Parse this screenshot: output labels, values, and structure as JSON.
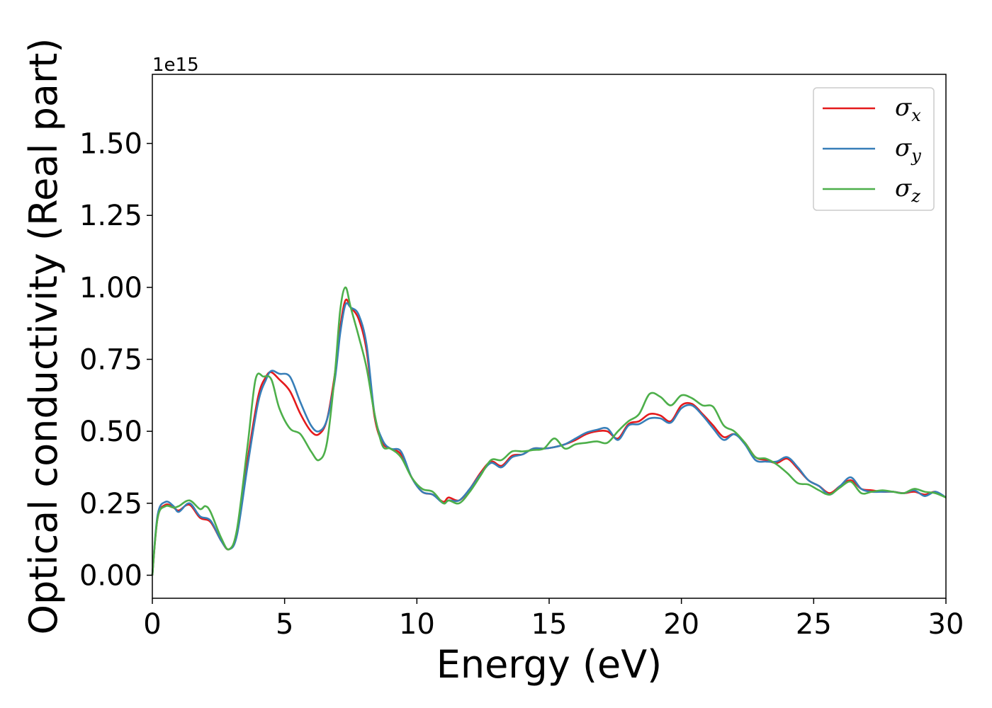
{
  "chart_data": {
    "type": "line",
    "title": "",
    "xlabel": "Energy (eV)",
    "ylabel": "Optical conductivity (Real part)",
    "y_offset_label": "1e15",
    "xlim": [
      0,
      30
    ],
    "ylim": [
      -0.08,
      1.74
    ],
    "x_ticks": [
      0,
      5,
      10,
      15,
      20,
      25,
      30
    ],
    "x_tick_labels": [
      "0",
      "5",
      "10",
      "15",
      "20",
      "25",
      "30"
    ],
    "y_ticks": [
      0.0,
      0.25,
      0.5,
      0.75,
      1.0,
      1.25,
      1.5
    ],
    "y_tick_labels": [
      "0.00",
      "0.25",
      "0.50",
      "0.75",
      "1.00",
      "1.25",
      "1.50"
    ],
    "grid": false,
    "legend_position": "top-right",
    "series": [
      {
        "name": "σx",
        "symbol": "σ",
        "subscript": "x",
        "color": "#e41a1c",
        "x": [
          0,
          0.2,
          0.5,
          0.8,
          1.0,
          1.4,
          1.8,
          2.2,
          2.6,
          2.9,
          3.2,
          3.6,
          4.0,
          4.3,
          4.5,
          4.8,
          5.2,
          5.6,
          6.0,
          6.3,
          6.6,
          6.9,
          7.1,
          7.3,
          7.5,
          7.8,
          8.1,
          8.4,
          8.7,
          9.0,
          9.4,
          9.8,
          10.2,
          10.6,
          11.0,
          11.2,
          11.6,
          12.0,
          12.4,
          12.8,
          13.2,
          13.6,
          14.0,
          14.4,
          14.8,
          15.2,
          15.6,
          16.0,
          16.4,
          16.8,
          17.2,
          17.6,
          18.0,
          18.4,
          18.8,
          19.2,
          19.6,
          20.0,
          20.4,
          20.8,
          21.2,
          21.6,
          22.0,
          22.4,
          22.8,
          23.2,
          23.6,
          24.0,
          24.4,
          24.8,
          25.2,
          25.6,
          26.0,
          26.4,
          26.8,
          27.2,
          27.6,
          28.0,
          28.4,
          28.8,
          29.2,
          29.6,
          30.0
        ],
        "y": [
          0.0,
          0.2,
          0.245,
          0.235,
          0.225,
          0.245,
          0.2,
          0.185,
          0.12,
          0.09,
          0.15,
          0.4,
          0.62,
          0.69,
          0.705,
          0.68,
          0.64,
          0.56,
          0.5,
          0.49,
          0.54,
          0.7,
          0.86,
          0.955,
          0.93,
          0.89,
          0.78,
          0.55,
          0.46,
          0.44,
          0.42,
          0.34,
          0.29,
          0.28,
          0.255,
          0.27,
          0.26,
          0.3,
          0.355,
          0.395,
          0.38,
          0.415,
          0.42,
          0.44,
          0.44,
          0.445,
          0.455,
          0.47,
          0.49,
          0.5,
          0.5,
          0.475,
          0.525,
          0.535,
          0.56,
          0.555,
          0.535,
          0.59,
          0.595,
          0.56,
          0.52,
          0.48,
          0.49,
          0.46,
          0.41,
          0.4,
          0.39,
          0.405,
          0.37,
          0.33,
          0.31,
          0.285,
          0.31,
          0.33,
          0.3,
          0.295,
          0.29,
          0.29,
          0.285,
          0.29,
          0.28,
          0.29,
          0.27
        ]
      },
      {
        "name": "σy",
        "symbol": "σ",
        "subscript": "y",
        "color": "#377eb8",
        "x": [
          0,
          0.2,
          0.5,
          0.8,
          1.0,
          1.4,
          1.8,
          2.2,
          2.6,
          2.9,
          3.2,
          3.6,
          4.0,
          4.3,
          4.5,
          4.8,
          5.2,
          5.6,
          6.0,
          6.3,
          6.6,
          6.9,
          7.1,
          7.3,
          7.5,
          7.8,
          8.1,
          8.4,
          8.7,
          9.0,
          9.4,
          9.8,
          10.2,
          10.6,
          11.0,
          11.2,
          11.6,
          12.0,
          12.4,
          12.8,
          13.2,
          13.6,
          14.0,
          14.4,
          14.8,
          15.2,
          15.6,
          16.0,
          16.4,
          16.8,
          17.2,
          17.6,
          18.0,
          18.4,
          18.8,
          19.2,
          19.6,
          20.0,
          20.4,
          20.8,
          21.2,
          21.6,
          22.0,
          22.4,
          22.8,
          23.2,
          23.6,
          24.0,
          24.4,
          24.8,
          25.2,
          25.6,
          26.0,
          26.4,
          26.8,
          27.2,
          27.6,
          28.0,
          28.4,
          28.8,
          29.2,
          29.6,
          30.0
        ],
        "y": [
          0.0,
          0.21,
          0.255,
          0.24,
          0.22,
          0.25,
          0.205,
          0.19,
          0.12,
          0.09,
          0.14,
          0.38,
          0.6,
          0.68,
          0.71,
          0.7,
          0.69,
          0.6,
          0.52,
          0.5,
          0.54,
          0.68,
          0.84,
          0.94,
          0.93,
          0.905,
          0.8,
          0.56,
          0.47,
          0.44,
          0.43,
          0.34,
          0.29,
          0.28,
          0.25,
          0.26,
          0.26,
          0.3,
          0.35,
          0.39,
          0.375,
          0.41,
          0.42,
          0.44,
          0.44,
          0.445,
          0.455,
          0.475,
          0.495,
          0.505,
          0.51,
          0.47,
          0.52,
          0.525,
          0.545,
          0.545,
          0.53,
          0.58,
          0.59,
          0.555,
          0.51,
          0.47,
          0.49,
          0.455,
          0.4,
          0.395,
          0.395,
          0.41,
          0.375,
          0.33,
          0.31,
          0.28,
          0.31,
          0.34,
          0.3,
          0.29,
          0.29,
          0.29,
          0.285,
          0.295,
          0.275,
          0.29,
          0.27
        ]
      },
      {
        "name": "σz",
        "symbol": "σ",
        "subscript": "z",
        "color": "#4daf4a",
        "x": [
          0,
          0.2,
          0.5,
          0.8,
          1.0,
          1.4,
          1.8,
          2.0,
          2.2,
          2.6,
          2.9,
          3.2,
          3.6,
          3.9,
          4.2,
          4.5,
          4.8,
          5.2,
          5.6,
          6.0,
          6.3,
          6.6,
          6.9,
          7.1,
          7.3,
          7.5,
          7.8,
          8.1,
          8.4,
          8.7,
          9.0,
          9.4,
          9.8,
          10.2,
          10.6,
          11.0,
          11.2,
          11.6,
          12.0,
          12.4,
          12.8,
          13.2,
          13.6,
          14.0,
          14.4,
          14.8,
          15.2,
          15.6,
          16.0,
          16.4,
          16.8,
          17.2,
          17.6,
          18.0,
          18.4,
          18.8,
          19.2,
          19.6,
          20.0,
          20.4,
          20.8,
          21.2,
          21.6,
          22.0,
          22.4,
          22.8,
          23.2,
          23.6,
          24.0,
          24.4,
          24.8,
          25.2,
          25.6,
          26.0,
          26.4,
          26.8,
          27.2,
          27.6,
          28.0,
          28.4,
          28.8,
          29.2,
          29.6,
          30.0
        ],
        "y": [
          0.0,
          0.2,
          0.24,
          0.235,
          0.24,
          0.26,
          0.23,
          0.24,
          0.22,
          0.13,
          0.09,
          0.16,
          0.45,
          0.68,
          0.69,
          0.68,
          0.58,
          0.51,
          0.49,
          0.43,
          0.4,
          0.46,
          0.7,
          0.92,
          1.0,
          0.93,
          0.83,
          0.72,
          0.56,
          0.45,
          0.44,
          0.41,
          0.34,
          0.3,
          0.29,
          0.25,
          0.26,
          0.25,
          0.29,
          0.345,
          0.4,
          0.4,
          0.43,
          0.43,
          0.435,
          0.44,
          0.475,
          0.44,
          0.455,
          0.46,
          0.465,
          0.46,
          0.5,
          0.535,
          0.56,
          0.63,
          0.62,
          0.59,
          0.625,
          0.615,
          0.59,
          0.585,
          0.52,
          0.5,
          0.46,
          0.41,
          0.405,
          0.385,
          0.355,
          0.32,
          0.315,
          0.295,
          0.28,
          0.305,
          0.325,
          0.285,
          0.29,
          0.295,
          0.29,
          0.285,
          0.3,
          0.29,
          0.285,
          0.27
        ]
      }
    ]
  }
}
